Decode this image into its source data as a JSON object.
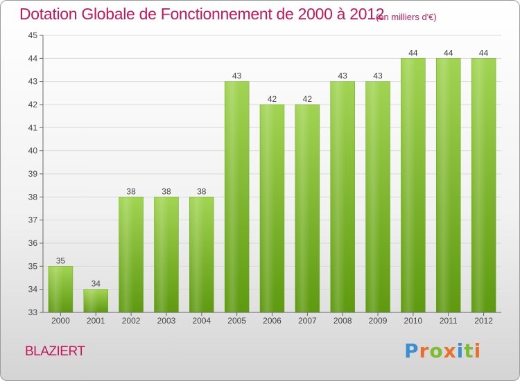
{
  "header": {
    "title": "Dotation Globale de Fonctionnement de 2000 à 2012",
    "subtitle": "(en milliers d'€)"
  },
  "footer": {
    "commune": "BLAZIERT",
    "logo": "Proxiti"
  },
  "colors": {
    "accent": "#c2185b",
    "bar_top": "#9fd24f",
    "bar_bottom": "#5f9a10",
    "grid": "#d8d8d8",
    "axis": "#555555"
  },
  "chart_data": {
    "type": "bar",
    "categories": [
      "2000",
      "2001",
      "2002",
      "2003",
      "2004",
      "2005",
      "2006",
      "2007",
      "2008",
      "2009",
      "2010",
      "2011",
      "2012"
    ],
    "values": [
      35,
      34,
      38,
      38,
      38,
      43,
      42,
      42,
      43,
      43,
      44,
      44,
      44
    ],
    "value_labels": [
      "35",
      "34",
      "38",
      "38",
      "38",
      "43",
      "42",
      "42",
      "43",
      "43",
      "44",
      "44",
      "44"
    ],
    "title": "Dotation Globale de Fonctionnement de 2000 à 2012",
    "subtitle": "(en milliers d'€)",
    "xlabel": "",
    "ylabel": "",
    "ylim": [
      33,
      45
    ],
    "yticks": [
      33,
      34,
      35,
      36,
      37,
      38,
      39,
      40,
      41,
      42,
      43,
      44,
      45
    ],
    "grid": true,
    "legend": "none"
  }
}
